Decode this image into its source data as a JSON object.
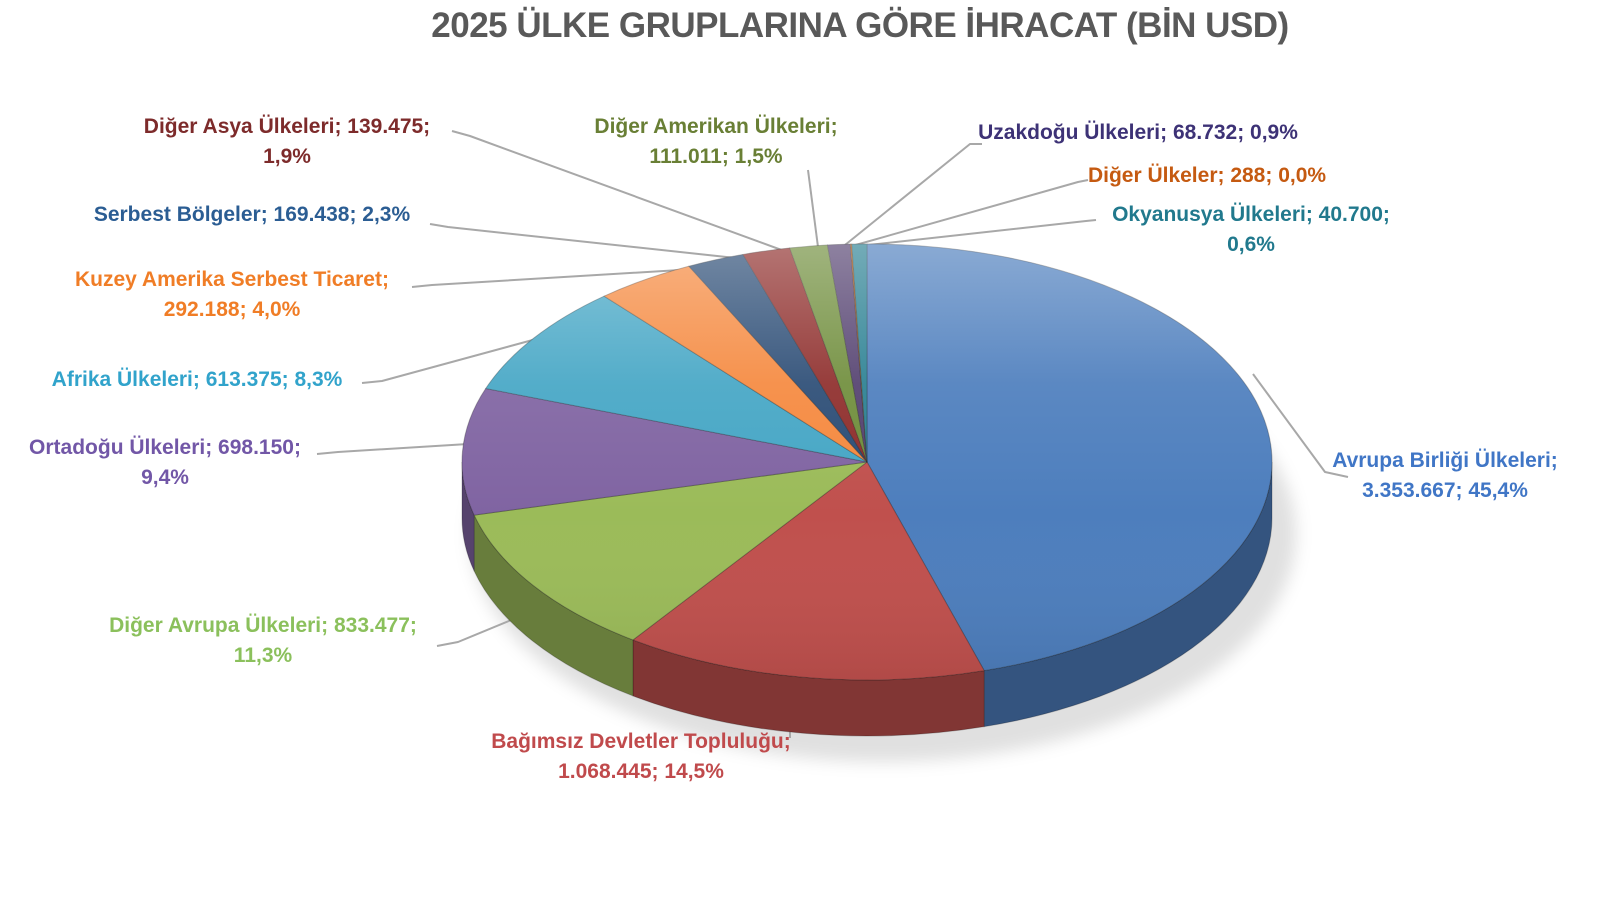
{
  "chart_data": {
    "type": "pie",
    "style": "3d-pie",
    "title": "2025 ÜLKE GRUPLARINA GÖRE İHRACAT (BİN USD)",
    "unit": "BİN USD",
    "legend_position": "none",
    "grid": false,
    "slices": [
      {
        "name": "Avrupa Birliği Ülkeleri",
        "value": "3.353.667",
        "pct": 45.4,
        "pct_label": "45,4%",
        "color": "#4D7EBD",
        "label_color": "#4076C6",
        "label_lines": [
          "Avrupa Birliği Ülkeleri;",
          "3.353.667; 45,4%"
        ]
      },
      {
        "name": "Bağımsız Devletler Topluluğu",
        "value": "1.068.445",
        "pct": 14.5,
        "pct_label": "14,5%",
        "color": "#C0504D",
        "label_color": "#C04A4C",
        "label_lines": [
          "Bağımsız Devletler Topluluğu;",
          "1.068.445; 14,5%"
        ]
      },
      {
        "name": "Diğer Avrupa Ülkeleri",
        "value": "833.477",
        "pct": 11.3,
        "pct_label": "11,3%",
        "color": "#9BBB59",
        "label_color": "#8BC05C",
        "label_lines": [
          "Diğer Avrupa Ülkeleri; 833.477;",
          "11,3%"
        ]
      },
      {
        "name": "Ortadoğu Ülkeleri",
        "value": "698.150",
        "pct": 9.4,
        "pct_label": "9,4%",
        "color": "#8064A2",
        "label_color": "#7257A7",
        "label_lines": [
          "Ortadoğu Ülkeleri; 698.150;",
          "9,4%"
        ]
      },
      {
        "name": "Afrika Ülkeleri",
        "value": "613.375",
        "pct": 8.3,
        "pct_label": "8,3%",
        "color": "#45A6C5",
        "label_color": "#31A3CB",
        "label_lines": [
          "Afrika Ülkeleri; 613.375; 8,3%"
        ]
      },
      {
        "name": "Kuzey Amerika Serbest Ticaret",
        "value": "292.188",
        "pct": 4.0,
        "pct_label": "4,0%",
        "color": "#F5893F",
        "label_color": "#F07D26",
        "label_lines": [
          "Kuzey Amerika Serbest Ticaret;",
          "292.188; 4,0%"
        ]
      },
      {
        "name": "Serbest Bölgeler",
        "value": "169.438",
        "pct": 2.3,
        "pct_label": "2,3%",
        "color": "#2B4C75",
        "label_color": "#2B5D93",
        "label_lines": [
          "Serbest Bölgeler; 169.438; 2,3%"
        ]
      },
      {
        "name": "Diğer Asya Ülkeleri",
        "value": "139.475",
        "pct": 1.9,
        "pct_label": "1,9%",
        "color": "#8E2D2B",
        "label_color": "#7D2B2B",
        "label_lines": [
          "Diğer Asya Ülkeleri; 139.475;",
          "1,9%"
        ]
      },
      {
        "name": "Diğer Amerikan Ülkeleri",
        "value": "111.011",
        "pct": 1.5,
        "pct_label": "1,5%",
        "color": "#6F8D3B",
        "label_color": "#697F35",
        "label_lines": [
          "Diğer Amerikan Ülkeleri;",
          "111.011; 1,5%"
        ]
      },
      {
        "name": "Uzakdoğu Ülkeleri",
        "value": "68.732",
        "pct": 0.9,
        "pct_label": "0,9%",
        "color": "#53406F",
        "label_color": "#3D3276",
        "label_lines": [
          "Uzakdoğu Ülkeleri; 68.732; 0,9%"
        ]
      },
      {
        "name": "Diğer Ülkeler",
        "value": "288",
        "pct": 0.0,
        "pct_label": "0,0%",
        "color": "#B65708",
        "label_color": "#C55A11",
        "label_lines": [
          "Diğer Ülkeler; 288; 0,0%"
        ]
      },
      {
        "name": "Okyanusya Ülkeleri",
        "value": "40.700",
        "pct": 0.6,
        "pct_label": "0,6%",
        "color": "#2A8092",
        "label_color": "#21798D",
        "label_lines": [
          "Okyanusya Ülkeleri; 40.700;",
          "0,6%"
        ]
      }
    ]
  }
}
